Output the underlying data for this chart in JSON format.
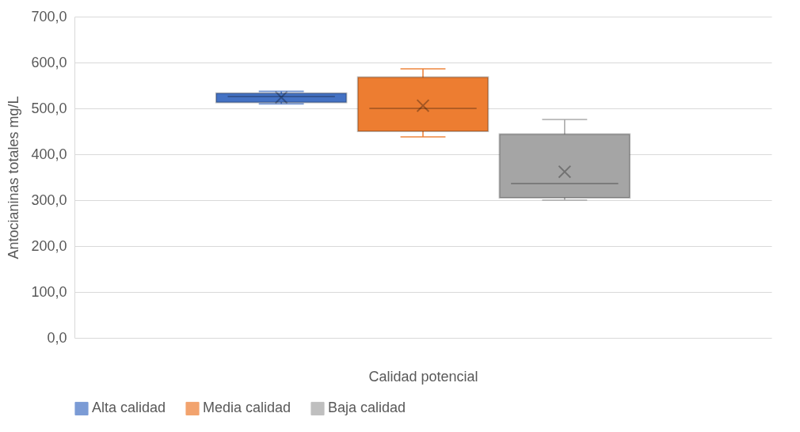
{
  "chart_data": {
    "type": "box",
    "categories": [
      null
    ],
    "xlabel": "Calidad potencial",
    "ylabel": "Antocianinas totales mg/L",
    "ylim": [
      0,
      700
    ],
    "yticks": [
      {
        "value": 0,
        "label": "0,0"
      },
      {
        "value": 100,
        "label": "100,0"
      },
      {
        "value": 200,
        "label": "200,0"
      },
      {
        "value": 300,
        "label": "300,0"
      },
      {
        "value": 400,
        "label": "400,0"
      },
      {
        "value": 500,
        "label": "500,0"
      },
      {
        "value": 600,
        "label": "600,0"
      },
      {
        "value": 700,
        "label": "700,0"
      }
    ],
    "grid": "y",
    "legend": "bottom",
    "series": [
      {
        "name": "Alta calidad",
        "color": "#4472c4",
        "boxes": [
          {
            "low": 510,
            "q1": 513,
            "median": 526,
            "q3": 533,
            "high": 537,
            "mean": 524
          }
        ]
      },
      {
        "name": "Media calidad",
        "color": "#ed7d31",
        "boxes": [
          {
            "low": 438,
            "q1": 450,
            "median": 500,
            "q3": 568,
            "high": 586,
            "mean": 506
          }
        ]
      },
      {
        "name": "Baja calidad",
        "color": "#a5a5a5",
        "boxes": [
          {
            "low": 300,
            "q1": 305,
            "median": 336,
            "q3": 444,
            "high": 476,
            "mean": 362
          }
        ]
      }
    ]
  }
}
